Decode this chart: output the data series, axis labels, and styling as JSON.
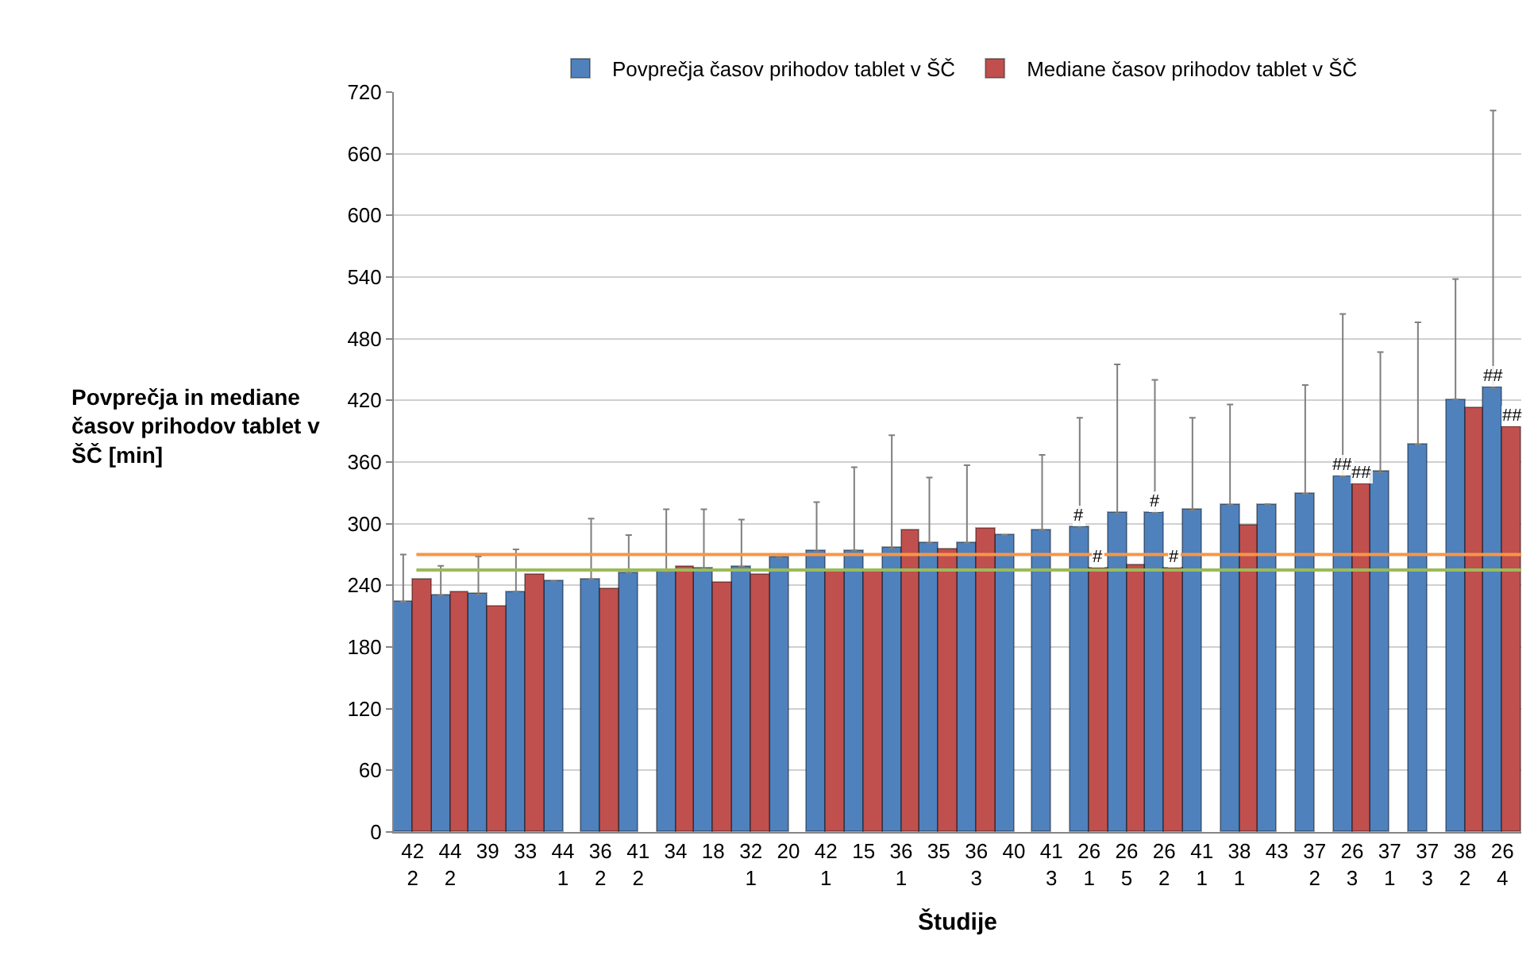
{
  "chart_data": {
    "type": "bar",
    "xlabel": "Študije",
    "ylabel": "Povprečja in mediane\nčasov prihodov tablet v\nŠČ [min]",
    "categories": [
      "42\n2",
      "44\n2",
      "39",
      "33",
      "44\n1",
      "36\n2",
      "41\n2",
      "34",
      "18",
      "32\n1",
      "20",
      "42\n1",
      "15",
      "36\n1",
      "35",
      "36\n3",
      "40",
      "41\n3",
      "26\n1",
      "26\n5",
      "26\n2",
      "41\n1",
      "38\n1",
      "43",
      "37\n2",
      "26\n3",
      "37\n1",
      "37\n3",
      "38\n2",
      "26\n4"
    ],
    "series": [
      {
        "name": "Povprečja časov prihodov tablet v ŠČ",
        "color": "#4f81bd",
        "values": [
          224,
          230,
          231,
          234,
          244,
          246,
          252,
          253,
          256,
          258,
          267,
          273,
          274,
          276,
          281,
          281,
          289,
          294,
          296,
          310,
          311,
          313,
          318,
          319,
          329,
          346,
          350,
          377,
          421,
          432
        ],
        "errors": [
          [
            224,
            270
          ],
          [
            230,
            259
          ],
          [
            231,
            268
          ],
          [
            234,
            275
          ],
          null,
          [
            246,
            305
          ],
          [
            252,
            289
          ],
          [
            253,
            314
          ],
          [
            256,
            314
          ],
          [
            258,
            304
          ],
          null,
          [
            273,
            321
          ],
          [
            274,
            355
          ],
          [
            276,
            386
          ],
          [
            281,
            345
          ],
          [
            281,
            357
          ],
          null,
          [
            294,
            367
          ],
          [
            296,
            403
          ],
          [
            310,
            455
          ],
          [
            311,
            440
          ],
          [
            313,
            403
          ],
          [
            318,
            416
          ],
          null,
          [
            329,
            435
          ],
          [
            346,
            504
          ],
          [
            350,
            467
          ],
          [
            377,
            496
          ],
          [
            421,
            538
          ],
          [
            432,
            702
          ]
        ],
        "value_labels": [
          null,
          null,
          null,
          null,
          null,
          null,
          null,
          null,
          null,
          null,
          null,
          null,
          null,
          null,
          null,
          null,
          null,
          null,
          "#",
          null,
          "#",
          null,
          null,
          null,
          null,
          "##",
          null,
          null,
          null,
          "##"
        ]
      },
      {
        "name": "Mediane časov prihodov tablet v ŠČ",
        "color": "#c0504d",
        "values": [
          246,
          234,
          220,
          250,
          null,
          237,
          null,
          258,
          243,
          250,
          null,
          255,
          255,
          294,
          275,
          295,
          null,
          null,
          256,
          260,
          257,
          null,
          298,
          null,
          null,
          339,
          null,
          null,
          412,
          394
        ],
        "value_labels": [
          null,
          null,
          null,
          null,
          null,
          null,
          null,
          null,
          null,
          null,
          null,
          null,
          null,
          null,
          null,
          null,
          null,
          null,
          "#",
          null,
          "#",
          null,
          null,
          null,
          null,
          "##",
          null,
          null,
          null,
          "##"
        ]
      }
    ],
    "ref_lines": [
      {
        "axis": "y",
        "value": 270,
        "color": "#f79646"
      },
      {
        "axis": "y",
        "value": 255,
        "color": "#9bbb59"
      }
    ],
    "ylim": [
      0,
      720
    ],
    "yticks": [
      0,
      60,
      120,
      180,
      240,
      300,
      360,
      420,
      480,
      540,
      600,
      660,
      720
    ],
    "grid": "y",
    "legend": "top"
  }
}
